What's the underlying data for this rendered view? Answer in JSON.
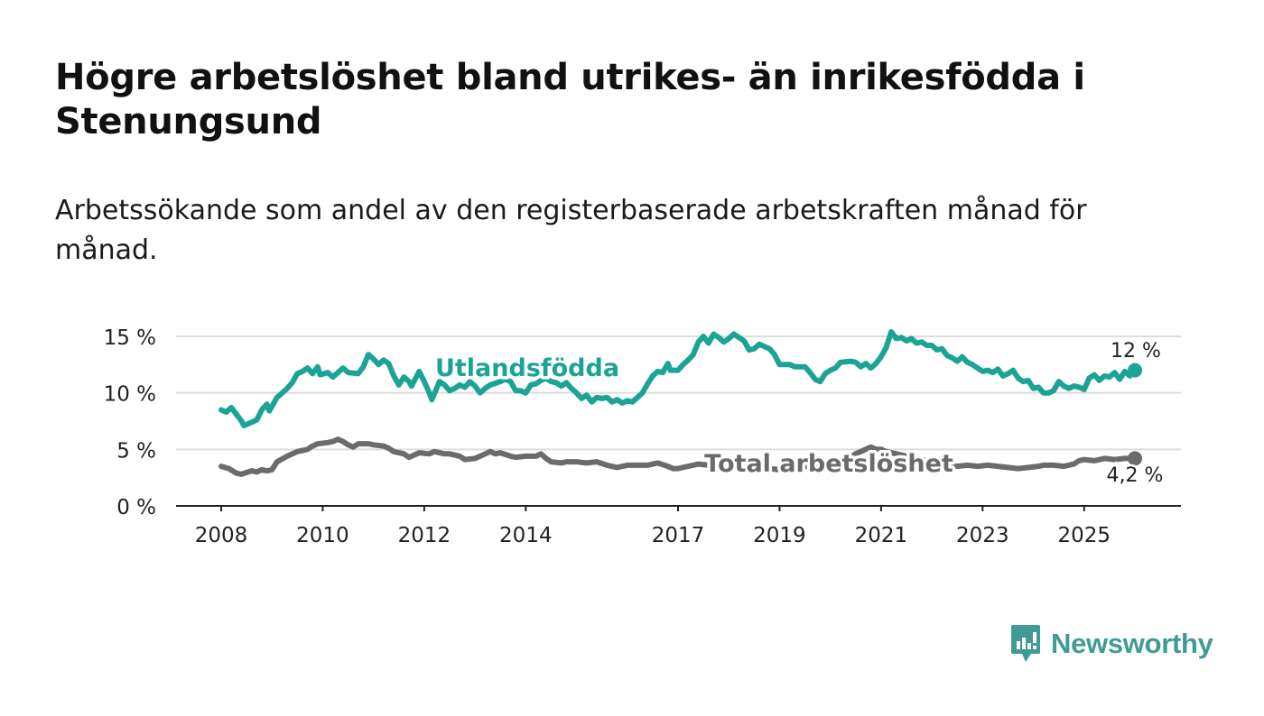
{
  "header": {
    "title": "Högre arbetslöshet bland utrikes- än inrikesfödda i Stenungsund",
    "subtitle": "Arbetssökande som andel av den registerbaserade arbetskraften månad för månad."
  },
  "brand": {
    "name": "Newsworthy",
    "color": "#3f9b97"
  },
  "chart_data": {
    "type": "line",
    "title": "Högre arbetslöshet bland utrikes- än inrikesfödda i Stenungsund",
    "xlabel": "",
    "ylabel": "",
    "ylim": [
      0,
      15
    ],
    "xlim": [
      2007.9,
      2026.2
    ],
    "y_ticks": [
      {
        "value": 0,
        "label": "0 %"
      },
      {
        "value": 5,
        "label": "5 %"
      },
      {
        "value": 10,
        "label": "10 %"
      },
      {
        "value": 15,
        "label": "15 %"
      }
    ],
    "x_ticks": [
      {
        "value": 2008,
        "label": "2008"
      },
      {
        "value": 2010,
        "label": "2010"
      },
      {
        "value": 2012,
        "label": "2012"
      },
      {
        "value": 2014,
        "label": "2014"
      },
      {
        "value": 2017,
        "label": "2017"
      },
      {
        "value": 2019,
        "label": "2019"
      },
      {
        "value": 2021,
        "label": "2021"
      },
      {
        "value": 2023,
        "label": "2023"
      },
      {
        "value": 2025,
        "label": "2025"
      }
    ],
    "grid": true,
    "series": [
      {
        "name": "Utlandsfödda",
        "color": "#1ba396",
        "end_label": "12 %",
        "points": [
          [
            2008.0,
            8.5
          ],
          [
            2008.1,
            8.3
          ],
          [
            2008.2,
            8.7
          ],
          [
            2008.3,
            8.1
          ],
          [
            2008.4,
            7.5
          ],
          [
            2008.45,
            7.1
          ],
          [
            2008.6,
            7.4
          ],
          [
            2008.7,
            7.6
          ],
          [
            2008.8,
            8.5
          ],
          [
            2008.9,
            9.0
          ],
          [
            2008.95,
            8.4
          ],
          [
            2009.1,
            9.6
          ],
          [
            2009.2,
            10.0
          ],
          [
            2009.3,
            10.4
          ],
          [
            2009.4,
            10.9
          ],
          [
            2009.5,
            11.7
          ],
          [
            2009.6,
            11.9
          ],
          [
            2009.7,
            12.2
          ],
          [
            2009.8,
            11.7
          ],
          [
            2009.9,
            12.3
          ],
          [
            2009.95,
            11.6
          ],
          [
            2010.1,
            11.8
          ],
          [
            2010.2,
            11.4
          ],
          [
            2010.3,
            11.8
          ],
          [
            2010.4,
            12.2
          ],
          [
            2010.5,
            11.8
          ],
          [
            2010.7,
            11.7
          ],
          [
            2010.8,
            12.3
          ],
          [
            2010.9,
            13.4
          ],
          [
            2011.0,
            13.0
          ],
          [
            2011.1,
            12.5
          ],
          [
            2011.2,
            12.9
          ],
          [
            2011.3,
            12.6
          ],
          [
            2011.4,
            11.5
          ],
          [
            2011.5,
            10.7
          ],
          [
            2011.6,
            11.4
          ],
          [
            2011.7,
            11.0
          ],
          [
            2011.75,
            10.6
          ],
          [
            2011.9,
            11.9
          ],
          [
            2012.0,
            11.0
          ],
          [
            2012.1,
            10.0
          ],
          [
            2012.15,
            9.4
          ],
          [
            2012.3,
            11.0
          ],
          [
            2012.4,
            10.7
          ],
          [
            2012.5,
            10.2
          ],
          [
            2012.6,
            10.4
          ],
          [
            2012.7,
            10.7
          ],
          [
            2012.8,
            10.5
          ],
          [
            2012.9,
            11.0
          ],
          [
            2013.0,
            10.6
          ],
          [
            2013.1,
            10.0
          ],
          [
            2013.2,
            10.4
          ],
          [
            2013.3,
            10.7
          ],
          [
            2013.5,
            11.0
          ],
          [
            2013.6,
            11.2
          ],
          [
            2013.7,
            11.0
          ],
          [
            2013.8,
            10.2
          ],
          [
            2013.9,
            10.2
          ],
          [
            2014.0,
            10.0
          ],
          [
            2014.1,
            10.7
          ],
          [
            2014.2,
            10.8
          ],
          [
            2014.3,
            11.1
          ],
          [
            2014.4,
            11.3
          ],
          [
            2014.5,
            11.0
          ],
          [
            2014.6,
            10.9
          ],
          [
            2014.7,
            10.6
          ],
          [
            2014.8,
            10.9
          ],
          [
            2014.9,
            10.4
          ],
          [
            2015.0,
            10.0
          ],
          [
            2015.1,
            9.5
          ],
          [
            2015.2,
            9.8
          ],
          [
            2015.3,
            9.2
          ],
          [
            2015.4,
            9.6
          ],
          [
            2015.5,
            9.5
          ],
          [
            2015.6,
            9.6
          ],
          [
            2015.7,
            9.2
          ],
          [
            2015.8,
            9.4
          ],
          [
            2015.9,
            9.1
          ],
          [
            2016.0,
            9.3
          ],
          [
            2016.1,
            9.2
          ],
          [
            2016.2,
            9.6
          ],
          [
            2016.3,
            10.0
          ],
          [
            2016.4,
            10.8
          ],
          [
            2016.5,
            11.5
          ],
          [
            2016.6,
            11.9
          ],
          [
            2016.7,
            11.8
          ],
          [
            2016.8,
            12.6
          ],
          [
            2016.85,
            12.0
          ],
          [
            2017.0,
            12.0
          ],
          [
            2017.1,
            12.5
          ],
          [
            2017.2,
            12.9
          ],
          [
            2017.3,
            13.4
          ],
          [
            2017.4,
            14.5
          ],
          [
            2017.5,
            15.0
          ],
          [
            2017.6,
            14.4
          ],
          [
            2017.7,
            15.2
          ],
          [
            2017.8,
            14.9
          ],
          [
            2017.9,
            14.5
          ],
          [
            2018.0,
            14.8
          ],
          [
            2018.1,
            15.2
          ],
          [
            2018.2,
            14.9
          ],
          [
            2018.3,
            14.6
          ],
          [
            2018.4,
            13.8
          ],
          [
            2018.5,
            13.9
          ],
          [
            2018.6,
            14.3
          ],
          [
            2018.7,
            14.1
          ],
          [
            2018.8,
            13.9
          ],
          [
            2018.9,
            13.4
          ],
          [
            2019.0,
            12.5
          ],
          [
            2019.2,
            12.5
          ],
          [
            2019.3,
            12.3
          ],
          [
            2019.5,
            12.3
          ],
          [
            2019.6,
            11.8
          ],
          [
            2019.7,
            11.2
          ],
          [
            2019.8,
            11.0
          ],
          [
            2019.9,
            11.7
          ],
          [
            2020.0,
            12.0
          ],
          [
            2020.1,
            12.2
          ],
          [
            2020.2,
            12.7
          ],
          [
            2020.4,
            12.8
          ],
          [
            2020.5,
            12.7
          ],
          [
            2020.6,
            12.3
          ],
          [
            2020.7,
            12.6
          ],
          [
            2020.8,
            12.2
          ],
          [
            2020.9,
            12.6
          ],
          [
            2021.0,
            13.2
          ],
          [
            2021.1,
            14.0
          ],
          [
            2021.2,
            15.4
          ],
          [
            2021.3,
            14.8
          ],
          [
            2021.4,
            14.9
          ],
          [
            2021.5,
            14.6
          ],
          [
            2021.6,
            14.8
          ],
          [
            2021.7,
            14.4
          ],
          [
            2021.8,
            14.5
          ],
          [
            2021.9,
            14.2
          ],
          [
            2022.0,
            14.2
          ],
          [
            2022.1,
            13.8
          ],
          [
            2022.2,
            13.9
          ],
          [
            2022.3,
            13.3
          ],
          [
            2022.4,
            13.1
          ],
          [
            2022.5,
            12.8
          ],
          [
            2022.6,
            13.2
          ],
          [
            2022.7,
            12.7
          ],
          [
            2022.8,
            12.5
          ],
          [
            2022.9,
            12.2
          ],
          [
            2023.0,
            11.9
          ],
          [
            2023.1,
            12.0
          ],
          [
            2023.2,
            11.8
          ],
          [
            2023.3,
            12.1
          ],
          [
            2023.4,
            11.5
          ],
          [
            2023.5,
            11.7
          ],
          [
            2023.6,
            12.0
          ],
          [
            2023.7,
            11.3
          ],
          [
            2023.8,
            11.0
          ],
          [
            2023.9,
            11.1
          ],
          [
            2024.0,
            10.4
          ],
          [
            2024.1,
            10.5
          ],
          [
            2024.2,
            10.0
          ],
          [
            2024.3,
            10.0
          ],
          [
            2024.4,
            10.2
          ],
          [
            2024.5,
            11.0
          ],
          [
            2024.6,
            10.6
          ],
          [
            2024.7,
            10.4
          ],
          [
            2024.8,
            10.6
          ],
          [
            2024.9,
            10.5
          ],
          [
            2025.0,
            10.3
          ],
          [
            2025.1,
            11.3
          ],
          [
            2025.2,
            11.6
          ],
          [
            2025.3,
            11.1
          ],
          [
            2025.4,
            11.5
          ],
          [
            2025.5,
            11.4
          ],
          [
            2025.6,
            11.8
          ],
          [
            2025.7,
            11.2
          ],
          [
            2025.8,
            11.9
          ],
          [
            2025.9,
            11.5
          ],
          [
            2026.0,
            12.0
          ]
        ]
      },
      {
        "name": "Total arbetslöshet",
        "color": "#6b6b6b",
        "end_label": "4,2 %",
        "points": [
          [
            2008.0,
            3.5
          ],
          [
            2008.15,
            3.3
          ],
          [
            2008.3,
            2.9
          ],
          [
            2008.4,
            2.8
          ],
          [
            2008.6,
            3.1
          ],
          [
            2008.7,
            3.0
          ],
          [
            2008.8,
            3.2
          ],
          [
            2008.9,
            3.1
          ],
          [
            2009.0,
            3.2
          ],
          [
            2009.1,
            3.9
          ],
          [
            2009.3,
            4.4
          ],
          [
            2009.5,
            4.8
          ],
          [
            2009.7,
            5.0
          ],
          [
            2009.8,
            5.3
          ],
          [
            2009.9,
            5.5
          ],
          [
            2010.1,
            5.6
          ],
          [
            2010.2,
            5.7
          ],
          [
            2010.3,
            5.9
          ],
          [
            2010.4,
            5.7
          ],
          [
            2010.5,
            5.4
          ],
          [
            2010.6,
            5.2
          ],
          [
            2010.7,
            5.5
          ],
          [
            2010.9,
            5.5
          ],
          [
            2011.0,
            5.4
          ],
          [
            2011.2,
            5.3
          ],
          [
            2011.3,
            5.1
          ],
          [
            2011.4,
            4.8
          ],
          [
            2011.6,
            4.6
          ],
          [
            2011.7,
            4.3
          ],
          [
            2011.9,
            4.7
          ],
          [
            2012.1,
            4.6
          ],
          [
            2012.2,
            4.8
          ],
          [
            2012.4,
            4.6
          ],
          [
            2012.5,
            4.6
          ],
          [
            2012.7,
            4.4
          ],
          [
            2012.8,
            4.1
          ],
          [
            2013.0,
            4.2
          ],
          [
            2013.2,
            4.6
          ],
          [
            2013.3,
            4.8
          ],
          [
            2013.4,
            4.6
          ],
          [
            2013.5,
            4.7
          ],
          [
            2013.7,
            4.4
          ],
          [
            2013.8,
            4.3
          ],
          [
            2014.0,
            4.4
          ],
          [
            2014.2,
            4.4
          ],
          [
            2014.3,
            4.6
          ],
          [
            2014.4,
            4.2
          ],
          [
            2014.5,
            3.9
          ],
          [
            2014.7,
            3.8
          ],
          [
            2014.8,
            3.9
          ],
          [
            2015.0,
            3.9
          ],
          [
            2015.2,
            3.8
          ],
          [
            2015.4,
            3.9
          ],
          [
            2015.6,
            3.6
          ],
          [
            2015.8,
            3.4
          ],
          [
            2016.0,
            3.6
          ],
          [
            2016.2,
            3.6
          ],
          [
            2016.4,
            3.6
          ],
          [
            2016.6,
            3.8
          ],
          [
            2016.8,
            3.5
          ],
          [
            2016.9,
            3.3
          ],
          [
            2017.0,
            3.3
          ],
          [
            2017.2,
            3.5
          ],
          [
            2017.4,
            3.7
          ],
          [
            2017.6,
            3.6
          ],
          [
            2017.8,
            3.5
          ],
          [
            2018.0,
            3.4
          ],
          [
            2018.2,
            3.4
          ],
          [
            2018.5,
            3.4
          ],
          [
            2018.8,
            3.3
          ],
          [
            2019.0,
            3.2
          ],
          [
            2019.2,
            3.4
          ],
          [
            2019.5,
            3.5
          ],
          [
            2019.8,
            3.4
          ],
          [
            2020.0,
            3.6
          ],
          [
            2020.3,
            4.0
          ],
          [
            2020.5,
            4.6
          ],
          [
            2020.7,
            5.0
          ],
          [
            2020.8,
            5.2
          ],
          [
            2020.9,
            5.0
          ],
          [
            2021.0,
            5.0
          ],
          [
            2021.1,
            4.8
          ],
          [
            2021.3,
            4.6
          ],
          [
            2021.5,
            4.4
          ],
          [
            2021.7,
            4.2
          ],
          [
            2021.9,
            4.0
          ],
          [
            2022.1,
            3.8
          ],
          [
            2022.3,
            3.6
          ],
          [
            2022.5,
            3.5
          ],
          [
            2022.7,
            3.6
          ],
          [
            2022.9,
            3.5
          ],
          [
            2023.1,
            3.6
          ],
          [
            2023.3,
            3.5
          ],
          [
            2023.5,
            3.4
          ],
          [
            2023.7,
            3.3
          ],
          [
            2023.9,
            3.4
          ],
          [
            2024.1,
            3.5
          ],
          [
            2024.2,
            3.6
          ],
          [
            2024.4,
            3.6
          ],
          [
            2024.6,
            3.5
          ],
          [
            2024.8,
            3.7
          ],
          [
            2024.9,
            4.0
          ],
          [
            2025.0,
            4.1
          ],
          [
            2025.2,
            4.0
          ],
          [
            2025.4,
            4.2
          ],
          [
            2025.6,
            4.1
          ],
          [
            2025.8,
            4.2
          ],
          [
            2026.0,
            4.2
          ]
        ]
      }
    ]
  }
}
